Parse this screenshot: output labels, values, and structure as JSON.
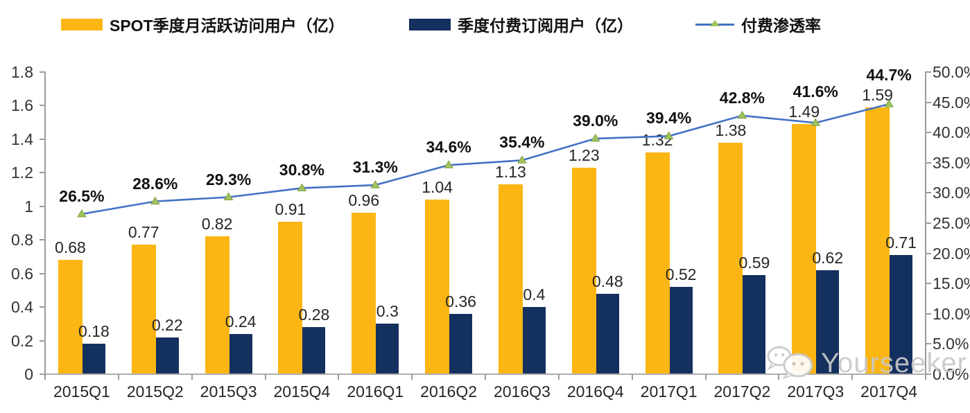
{
  "legend": {
    "items": [
      {
        "label": "SPOT季度月活跃访问用户（亿）",
        "swatch": "bar",
        "color": "#FBB613"
      },
      {
        "label": "季度付费订阅用户（亿）",
        "swatch": "bar",
        "color": "#14305E"
      },
      {
        "label": "付费渗透率",
        "swatch": "line-triangle-marker",
        "color": "#4471C4",
        "marker_color": "#A2C25B"
      }
    ]
  },
  "watermark": {
    "icon": "wechat-icon",
    "text": "Yourseeker",
    "color": "#c9c9c9"
  },
  "chart_data": {
    "type": "combo-bar-line",
    "categories": [
      "2015Q1",
      "2015Q2",
      "2015Q3",
      "2015Q4",
      "2016Q1",
      "2016Q2",
      "2016Q3",
      "2016Q4",
      "2017Q1",
      "2017Q2",
      "2017Q3",
      "2017Q4"
    ],
    "series": [
      {
        "name": "SPOT季度月活跃访问用户（亿）",
        "type": "bar",
        "axis": "left",
        "color": "#FBB613",
        "values": [
          0.68,
          0.77,
          0.82,
          0.91,
          0.96,
          1.04,
          1.13,
          1.23,
          1.32,
          1.38,
          1.49,
          1.59
        ],
        "labels": [
          "0.68",
          "0.77",
          "0.82",
          "0.91",
          "0.96",
          "1.04",
          "1.13",
          "1.23",
          "1.32",
          "1.38",
          "1.49",
          "1.59"
        ]
      },
      {
        "name": "季度付费订阅用户（亿）",
        "type": "bar",
        "axis": "left",
        "color": "#14305E",
        "values": [
          0.18,
          0.22,
          0.24,
          0.28,
          0.3,
          0.36,
          0.4,
          0.48,
          0.52,
          0.59,
          0.62,
          0.71
        ],
        "labels": [
          "0.18",
          "0.22",
          "0.24",
          "0.28",
          "0.3",
          "0.36",
          "0.4",
          "0.48",
          "0.52",
          "0.59",
          "0.62",
          "0.71"
        ]
      },
      {
        "name": "付费渗透率",
        "type": "line",
        "axis": "right",
        "color": "#4471C4",
        "marker": "triangle",
        "marker_color": "#A2C25B",
        "marker_edge": "#7FA046",
        "values": [
          26.5,
          28.6,
          29.3,
          30.8,
          31.3,
          34.6,
          35.4,
          39.0,
          39.4,
          42.8,
          41.6,
          44.7
        ],
        "labels": [
          "26.5%",
          "28.6%",
          "29.3%",
          "30.8%",
          "31.3%",
          "34.6%",
          "35.4%",
          "39.0%",
          "39.4%",
          "42.8%",
          "41.6%",
          "44.7%"
        ]
      }
    ],
    "left_axis": {
      "min": 0,
      "max": 1.8,
      "tick_labels": [
        "1.8",
        "1.6",
        "1.4",
        "1.2",
        "1",
        "0.8",
        "0.6",
        "0.4",
        "0.2",
        "0"
      ]
    },
    "right_axis": {
      "min": 0,
      "max": 50,
      "unit": "%",
      "tick_labels": [
        "50.0%",
        "45.0%",
        "40.0%",
        "35.0%",
        "30.0%",
        "25.0%",
        "20.0%",
        "15.0%",
        "10.0%",
        "5.0%",
        "0.0%"
      ]
    },
    "grid": false,
    "legend_position": "top"
  }
}
